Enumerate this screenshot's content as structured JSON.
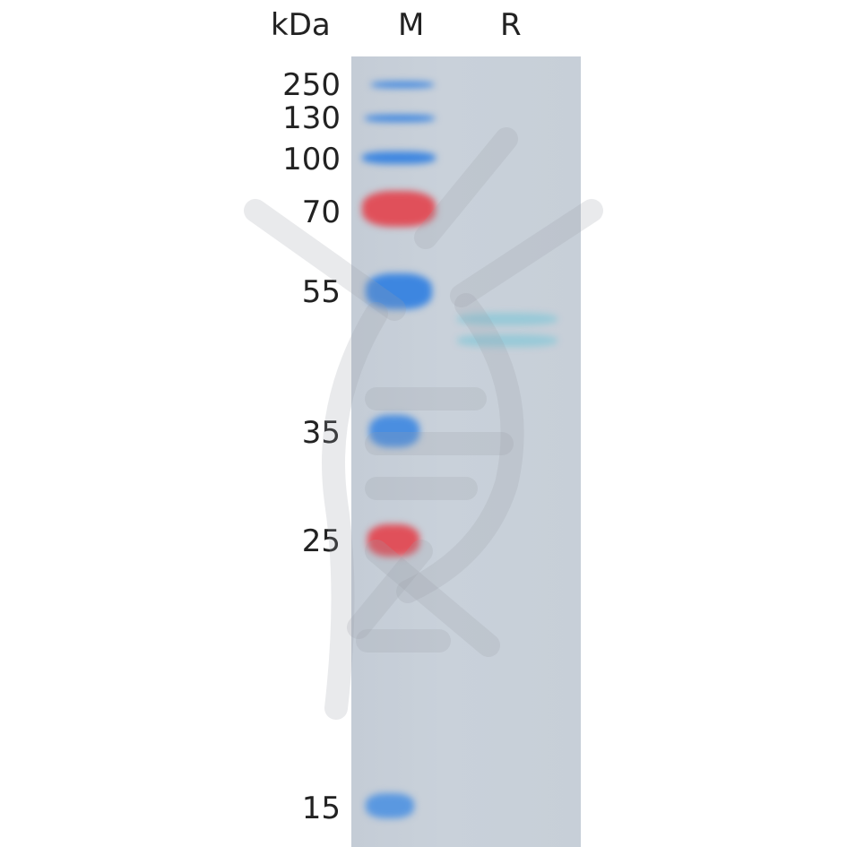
{
  "header": {
    "unit_label": "kDa",
    "lanes": [
      "M",
      "R"
    ]
  },
  "marker_weights": [
    "250",
    "130",
    "100",
    "70",
    "55",
    "35",
    "25",
    "15"
  ],
  "marker_colors": [
    "#3d86e0",
    "#3d86e0",
    "#3d86e0",
    "#e0505a",
    "#3d86e0",
    "#3d86e0",
    "#e0505a",
    "#3d86e0"
  ],
  "sample_band_color": "#8cc8d8",
  "gel_background": "#c8d0d9"
}
